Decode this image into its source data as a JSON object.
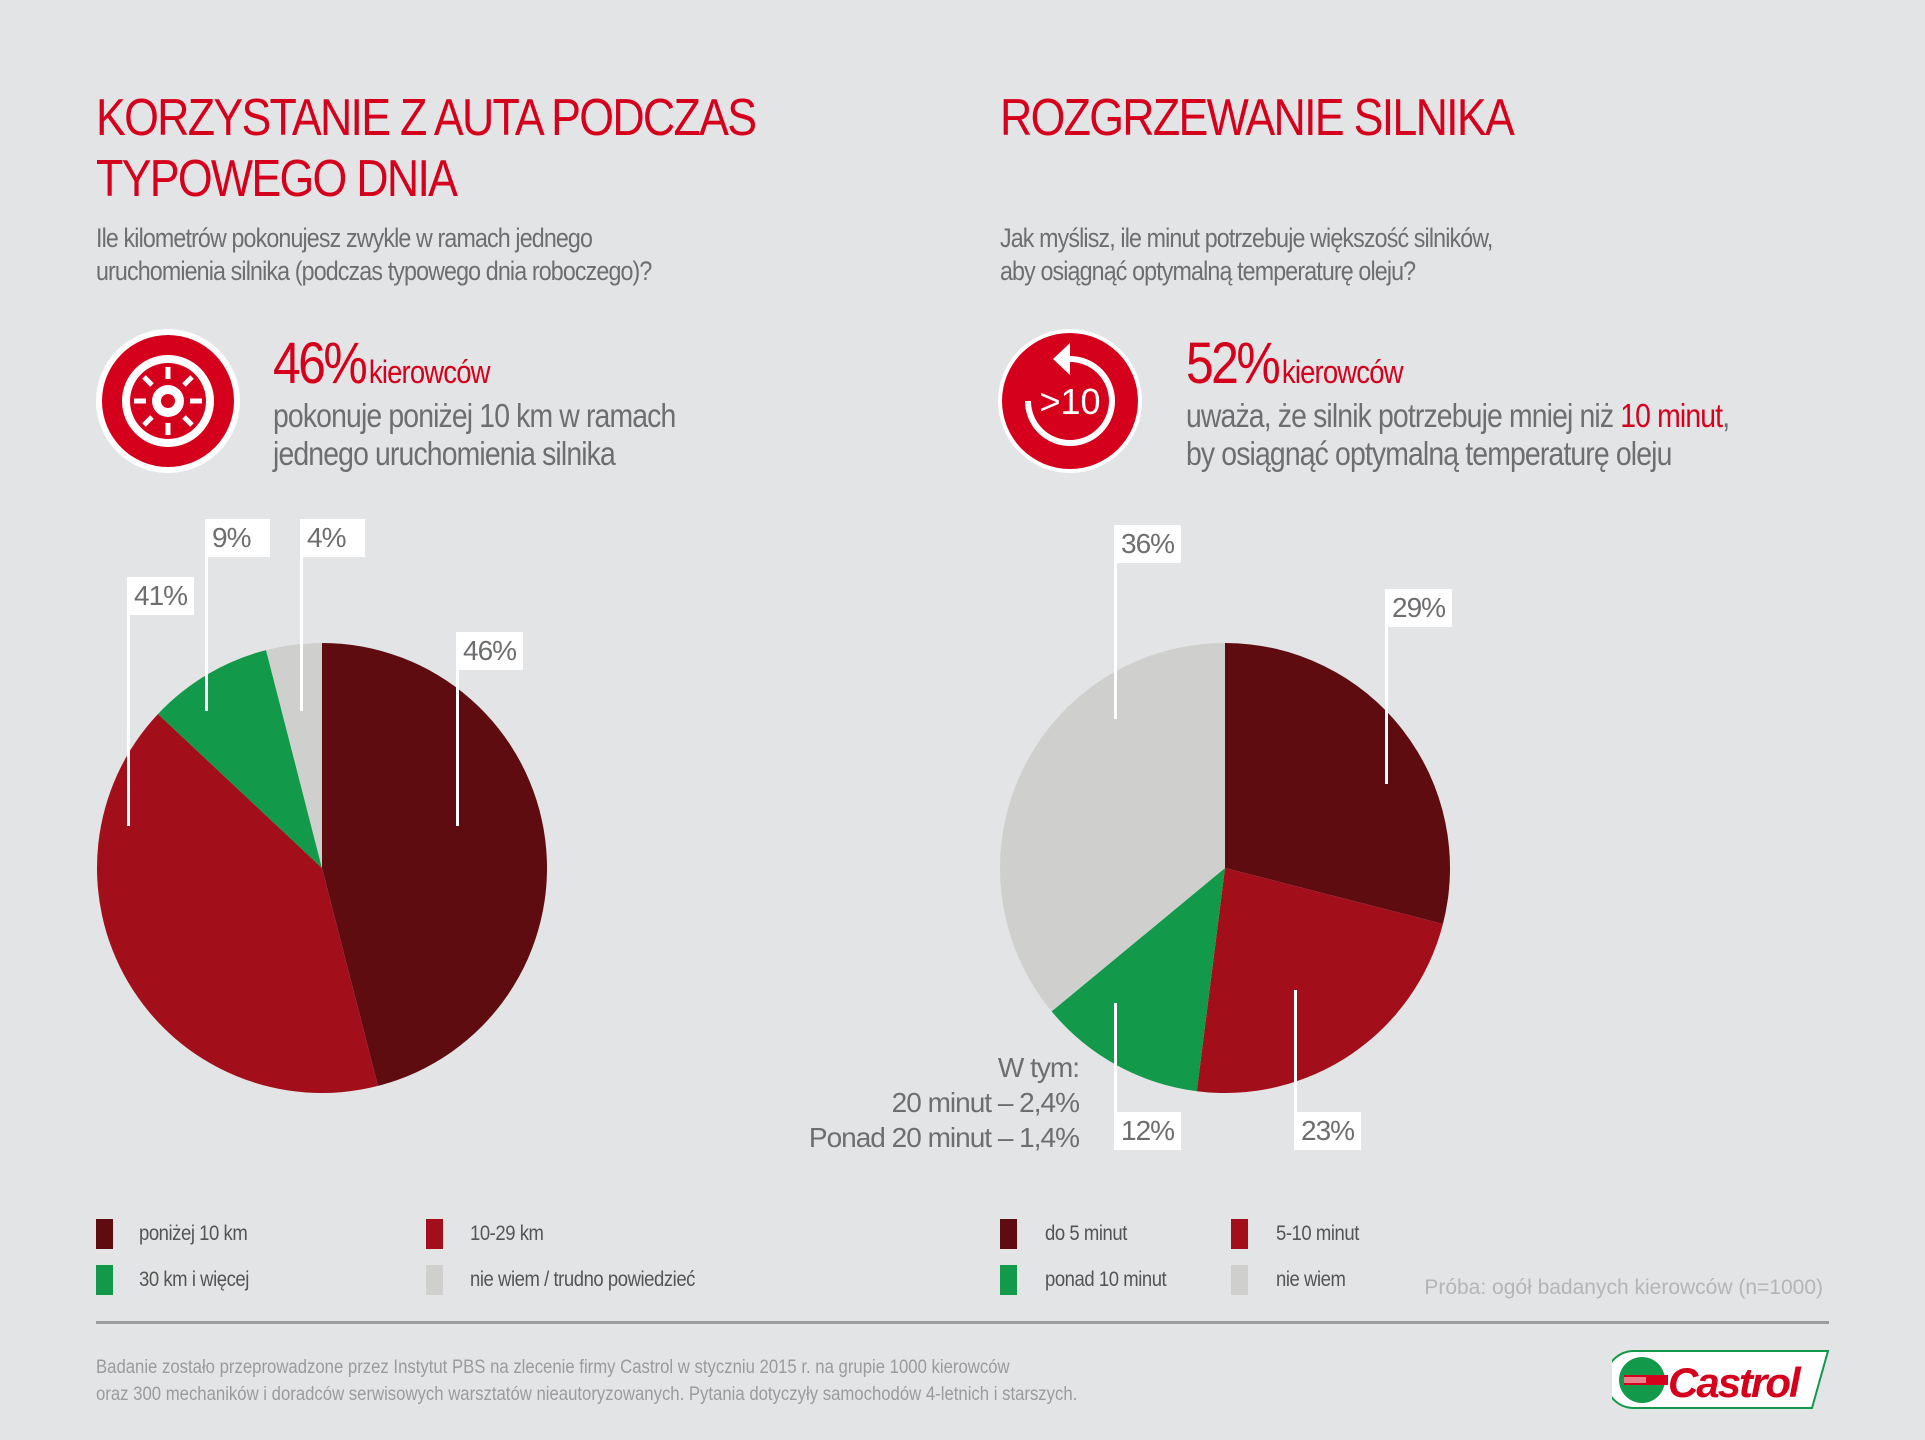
{
  "colors": {
    "dark": "#5e0c10",
    "red": "#a30e1b",
    "green": "#12994a",
    "gray": "#cfcfcd",
    "accent": "#d5001c"
  },
  "left": {
    "title_line1": "KORZYSTANIE Z AUTA PODCZAS",
    "title_line2": "TYPOWEGO DNIA",
    "question_line1": "Ile kilometrów pokonujesz zwykle w ramach jednego",
    "question_line2": "uruchomienia silnika (podczas typowego dnia roboczego)?",
    "icon": "tyre-icon",
    "stat_value": "46%",
    "stat_unit": "kierowców",
    "stat_desc_line1": "pokonuje poniżej 10 km w ramach",
    "stat_desc_line2": "jednego uruchomienia silnika",
    "legend": [
      "poniżej 10 km",
      "10-29 km",
      "30 km i więcej",
      "nie wiem / trudno powiedzieć"
    ]
  },
  "right": {
    "title": "ROZGRZEWANIE SILNIKA",
    "question_line1": "Jak myślisz, ile minut potrzebuje większość silników,",
    "question_line2": "aby osiągnąć optymalną temperaturę oleju?",
    "icon": "timer-arrow-icon",
    "icon_text": ">10",
    "stat_value": "52%",
    "stat_unit": "kierowców",
    "stat_desc_pre": "uważa, że silnik potrzebuje mniej niż ",
    "stat_desc_highlight": "10 minut",
    "stat_desc_post": ",",
    "stat_desc_line2": "by osiągnąć optymalną temperaturę oleju",
    "note_line1": "W tym:",
    "note_line2": "20 minut – 2,4%",
    "note_line3": "Ponad 20 minut – 1,4%",
    "legend": [
      "do 5 minut",
      "5-10 minut",
      "ponad 10 minut",
      "nie wiem"
    ],
    "sample": "Próba: ogół badanych kierowców (n=1000)"
  },
  "chart_data": [
    {
      "type": "pie",
      "title": "Korzystanie z auta podczas typowego dnia",
      "categories": [
        "poniżej 10 km",
        "10-29 km",
        "30 km i więcej",
        "nie wiem / trudno powiedzieć"
      ],
      "values": [
        46,
        41,
        9,
        4
      ],
      "labels": [
        "46%",
        "41%",
        "9%",
        "4%"
      ]
    },
    {
      "type": "pie",
      "title": "Rozgrzewanie silnika",
      "categories": [
        "do 5 minut",
        "5-10 minut",
        "ponad 10 minut",
        "nie wiem"
      ],
      "values": [
        29,
        23,
        12,
        36
      ],
      "labels": [
        "29%",
        "23%",
        "12%",
        "36%"
      ]
    }
  ],
  "footer": {
    "line1": "Badanie zostało przeprowadzone przez Instytut PBS na zlecenie firmy Castrol w styczniu 2015 r. na grupie 1000 kierowców",
    "line2": "oraz 300 mechaników i doradców serwisowych warsztatów nieautoryzowanych. Pytania dotyczyły samochodów 4-letnich i starszych.",
    "logo_text": "Castrol"
  }
}
